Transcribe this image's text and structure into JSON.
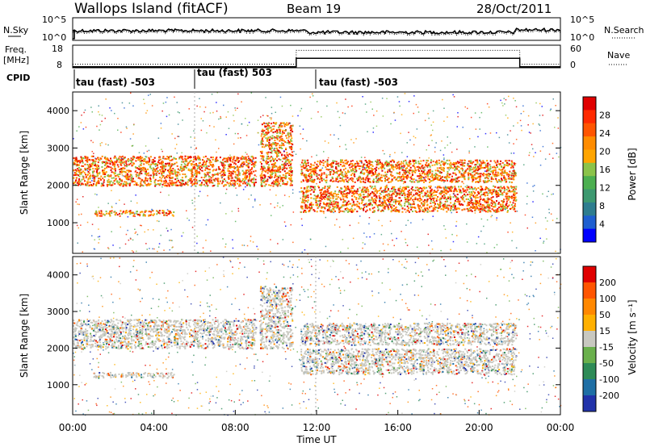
{
  "header": {
    "site": "Wallops Island (fitACF)",
    "beam": "Beam 19",
    "date": "28/Oct/2011"
  },
  "strip1": {
    "left_label": "N.Sky",
    "right_label": "N.Search",
    "left_ticks": [
      "10^5",
      "10^0"
    ],
    "right_ticks": [
      "10^5",
      "10^0"
    ]
  },
  "strip2": {
    "left_label_1": "Freq.",
    "left_label_2": "[MHz]",
    "right_label": "Nave",
    "left_ticks": [
      "18",
      "8"
    ],
    "right_ticks": [
      "60",
      "0"
    ]
  },
  "cpid": {
    "label": "CPID",
    "segments": [
      {
        "start_hr": 0.0,
        "text": "tau (fast) -503"
      },
      {
        "start_hr": 6.0,
        "text": "tau (fast) 503"
      },
      {
        "start_hr": 11.0,
        "text": "tau (fast) -503"
      }
    ]
  },
  "panels": {
    "ylabel": "Slant Range [km]",
    "xlabel": "Time UT",
    "xticks": [
      "00:00",
      "04:00",
      "08:00",
      "12:00",
      "16:00",
      "20:00",
      "00:00"
    ],
    "yticks": [
      "1000",
      "2000",
      "3000",
      "4000"
    ]
  },
  "colorbars": {
    "power": {
      "label": "Power [dB]",
      "ticks": [
        "28",
        "24",
        "20",
        "16",
        "12",
        "8",
        "4"
      ],
      "colors": [
        "#0000ff",
        "#1f5fd0",
        "#2e7d8f",
        "#3d9970",
        "#4caf50",
        "#8bc34a",
        "#ffa500",
        "#ff8c00",
        "#ff5500",
        "#ff2a00",
        "#e00000"
      ]
    },
    "velocity": {
      "label": "Velocity [m s⁻¹]",
      "ticks": [
        "200",
        "100",
        "50",
        "15",
        "-15",
        "-50",
        "-100",
        "-200"
      ],
      "colors": [
        "#2233aa",
        "#1f6fa5",
        "#2e8b57",
        "#6ab04c",
        "#c8c8c0",
        "#ffb000",
        "#ff8800",
        "#ff5500",
        "#e00000"
      ]
    }
  },
  "chart_data": {
    "type": "heatmap",
    "x_range_hours": [
      0,
      24
    ],
    "y_range_km": [
      180,
      4500
    ],
    "cpid_boundaries_hours": [
      6.0,
      11.0
    ],
    "freq_mhz": {
      "before_11h": 8.5,
      "after_11h": 12.5,
      "after_22h": 8.5
    },
    "nave": {
      "before_11h": 10,
      "after_11h": 50,
      "after_22h": 10
    },
    "echo_bands": [
      {
        "name": "main",
        "start_hr": 0.0,
        "end_hr": 9.0,
        "range_km": [
          2000,
          2800
        ]
      },
      {
        "name": "spike",
        "start_hr": 9.2,
        "end_hr": 10.8,
        "range_km": [
          2000,
          3700
        ]
      },
      {
        "name": "low-upper",
        "start_hr": 11.2,
        "end_hr": 21.8,
        "range_km": [
          2100,
          2700
        ]
      },
      {
        "name": "low-lower",
        "start_hr": 11.2,
        "end_hr": 21.8,
        "range_km": [
          1300,
          2000
        ]
      },
      {
        "name": "near-range",
        "start_hr": 1.0,
        "end_hr": 5.0,
        "range_km": [
          1200,
          1350
        ]
      }
    ]
  }
}
